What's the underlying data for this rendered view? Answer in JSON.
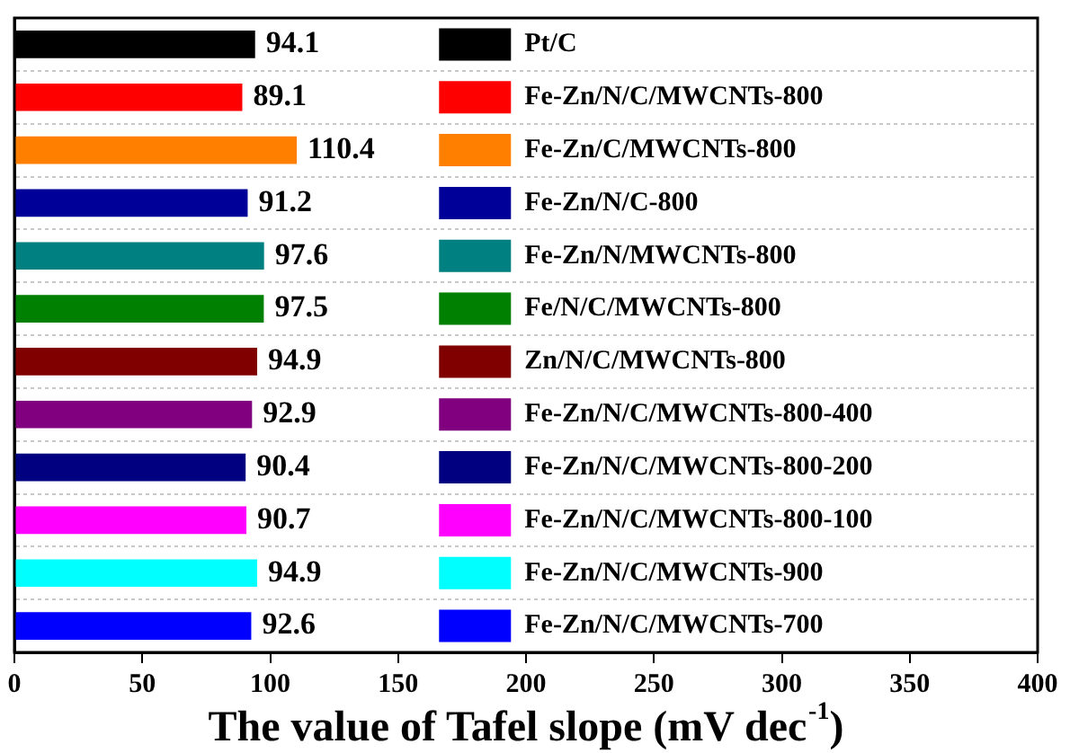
{
  "chart_data": {
    "type": "bar",
    "orientation": "horizontal",
    "xlabel": "The value of Tafel slope (mV dec$^{-1}$)",
    "categories": [
      null,
      null,
      null,
      null,
      null,
      null,
      null,
      null,
      null,
      null,
      null,
      null
    ],
    "series": [
      {
        "name": "Pt/C",
        "color": "#000000",
        "values": [
          94.1,
          null,
          null,
          null,
          null,
          null,
          null,
          null,
          null,
          null,
          null,
          null
        ]
      },
      {
        "name": "Fe-Zn/N/C/MWCNTs-800",
        "color": "#ff0000",
        "values": [
          null,
          89.1,
          null,
          null,
          null,
          null,
          null,
          null,
          null,
          null,
          null,
          null
        ]
      },
      {
        "name": "Fe-Zn/C/MWCNTs-800",
        "color": "#ff8000",
        "values": [
          null,
          null,
          110.4,
          null,
          null,
          null,
          null,
          null,
          null,
          null,
          null,
          null
        ]
      },
      {
        "name": "Fe-Zn/N/C-800",
        "color": "#000099",
        "values": [
          null,
          null,
          null,
          91.2,
          null,
          null,
          null,
          null,
          null,
          null,
          null,
          null
        ]
      },
      {
        "name": "Fe-Zn/N/MWCNTs-800",
        "color": "#008080",
        "values": [
          null,
          null,
          null,
          null,
          97.6,
          null,
          null,
          null,
          null,
          null,
          null,
          null
        ]
      },
      {
        "name": "Fe/N/C/MWCNTs-800",
        "color": "#008000",
        "values": [
          null,
          null,
          null,
          null,
          null,
          97.5,
          null,
          null,
          null,
          null,
          null,
          null
        ]
      },
      {
        "name": "Zn/N/C/MWCNTs-800",
        "color": "#800000",
        "values": [
          null,
          null,
          null,
          null,
          null,
          null,
          94.9,
          null,
          null,
          null,
          null,
          null
        ]
      },
      {
        "name": "Fe-Zn/N/C/MWCNTs-800-400",
        "color": "#800080",
        "values": [
          null,
          null,
          null,
          null,
          null,
          null,
          null,
          92.9,
          null,
          null,
          null,
          null
        ]
      },
      {
        "name": "Fe-Zn/N/C/MWCNTs-800-200",
        "color": "#000080",
        "values": [
          null,
          null,
          null,
          null,
          null,
          null,
          null,
          null,
          90.4,
          null,
          null,
          null
        ]
      },
      {
        "name": "Fe-Zn/N/C/MWCNTs-800-100",
        "color": "#ff00ff",
        "values": [
          null,
          null,
          null,
          null,
          null,
          null,
          null,
          null,
          null,
          90.7,
          null,
          null
        ]
      },
      {
        "name": "Fe-Zn/N/C/MWCNTs-900",
        "color": "#00ffff",
        "values": [
          null,
          null,
          null,
          null,
          null,
          null,
          null,
          null,
          null,
          null,
          94.9,
          null
        ]
      },
      {
        "name": "Fe-Zn/N/C/MWCNTs-700",
        "color": "#0000ff",
        "values": [
          null,
          null,
          null,
          null,
          null,
          null,
          null,
          null,
          null,
          null,
          null,
          92.6
        ]
      }
    ],
    "xlim": [
      0,
      400
    ],
    "xticks": [
      0,
      50,
      100,
      150,
      200,
      250,
      300,
      350,
      400
    ],
    "tick_labels": "x",
    "grid": "y",
    "legend": "right",
    "data_labels": true
  }
}
